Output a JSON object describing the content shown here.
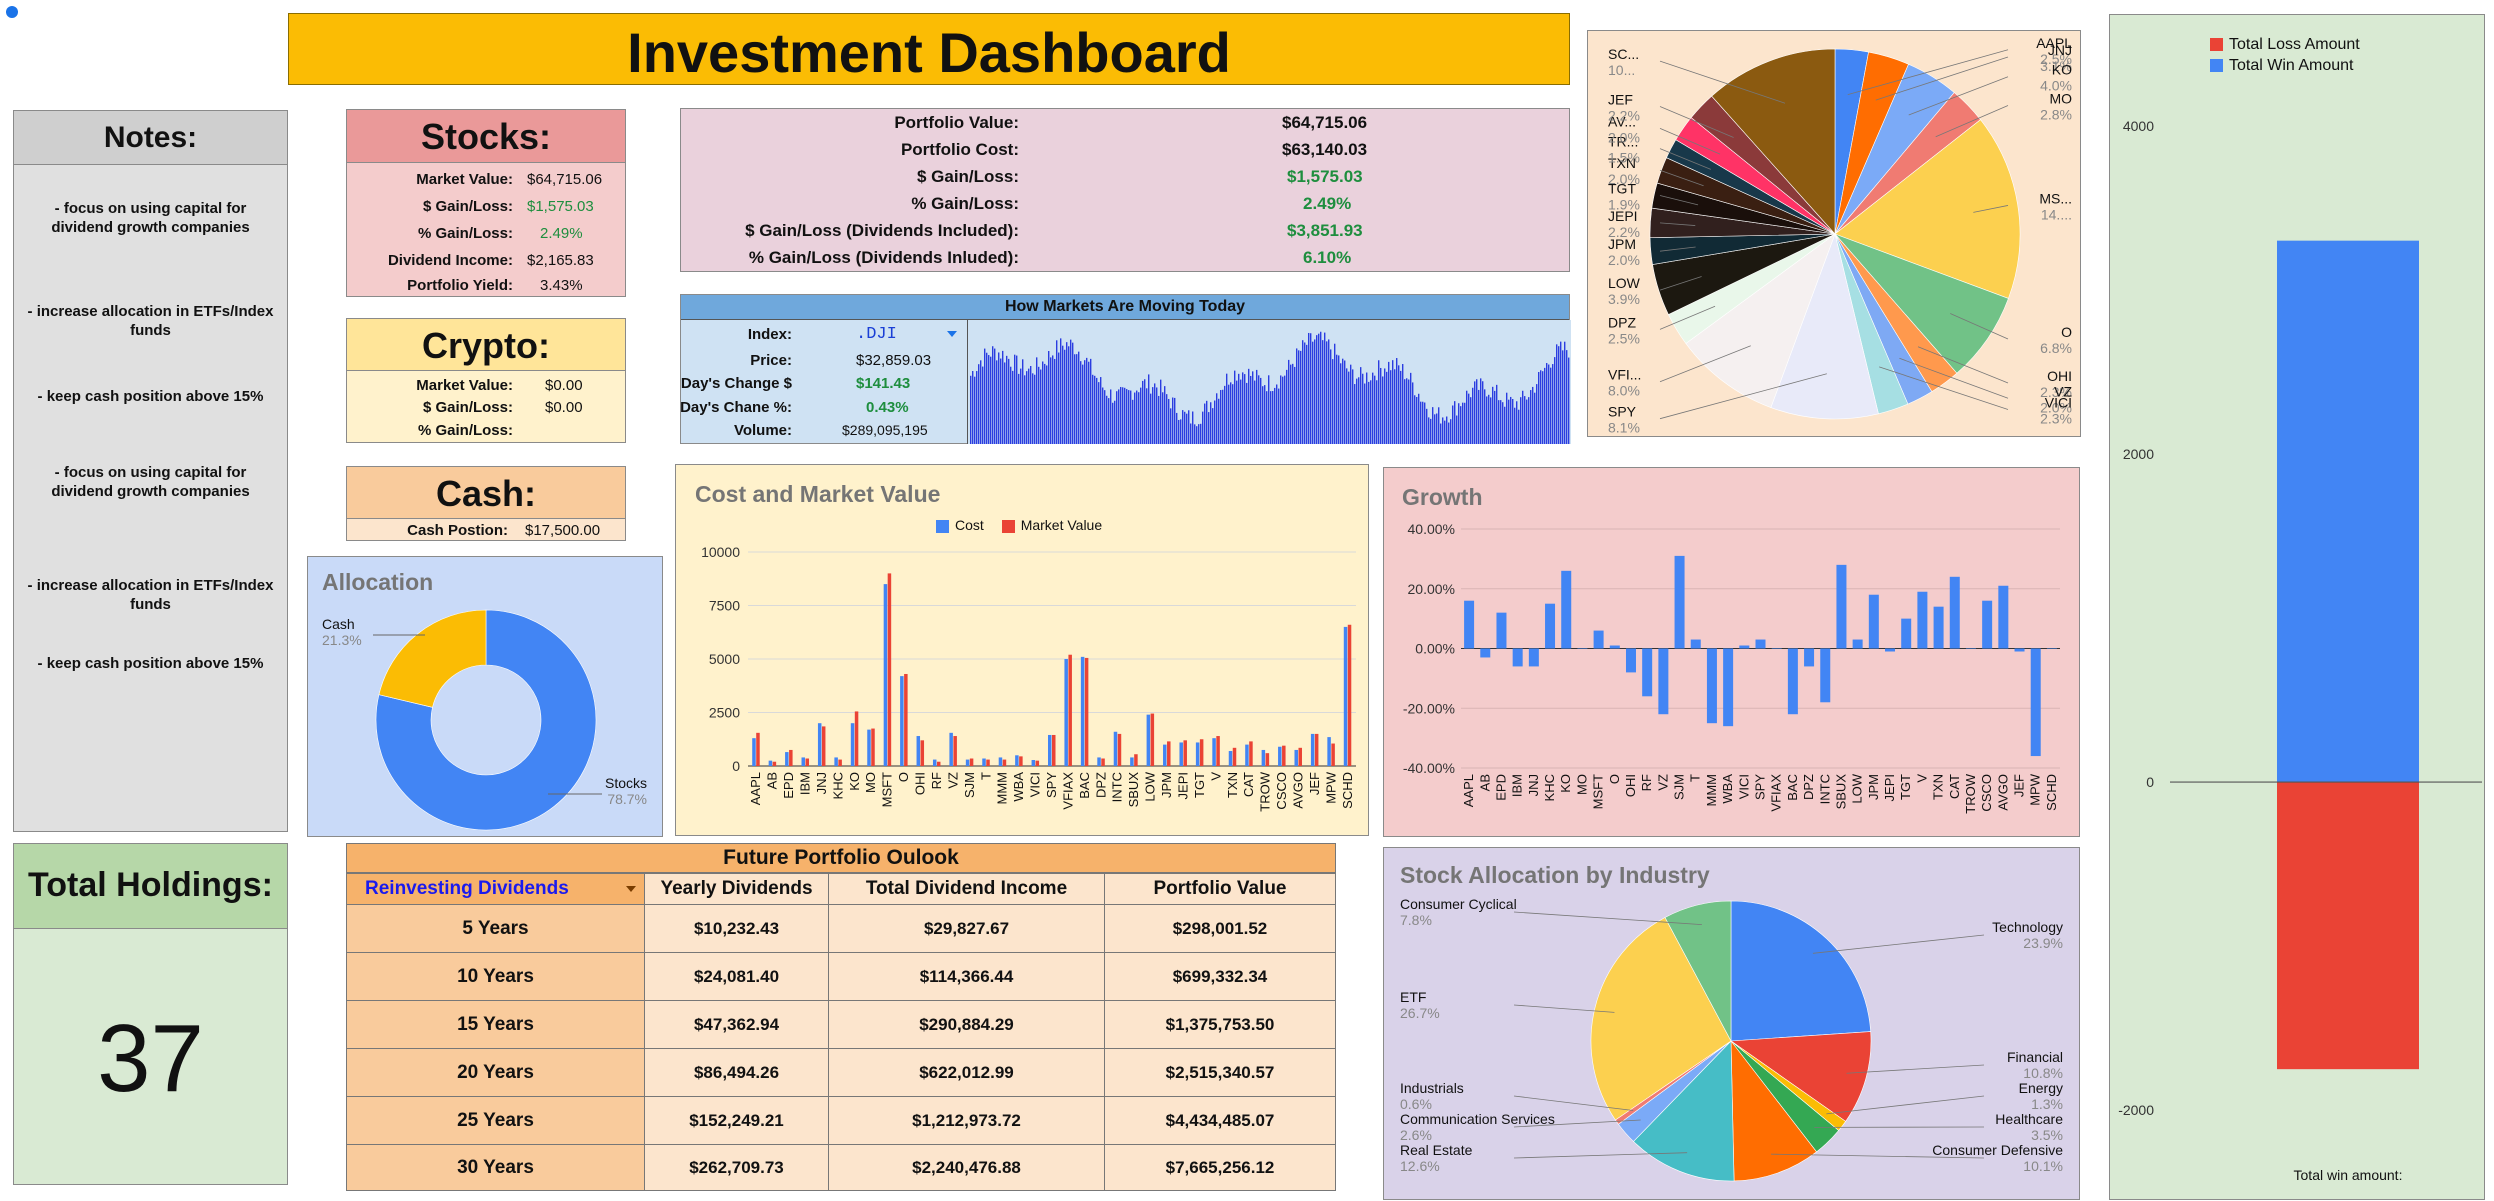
{
  "title": "Investment Dashboard",
  "notes": {
    "heading": "Notes:",
    "items": [
      "- focus on using capital for dividend growth companies",
      "- increase allocation in ETFs/Index funds",
      "- keep cash position above 15%",
      "- focus on using capital for dividend growth companies",
      "- increase allocation in ETFs/Index funds",
      "- keep cash position above 15%"
    ]
  },
  "total_holdings": {
    "heading": "Total Holdings:",
    "value": "37"
  },
  "stocks": {
    "heading": "Stocks:",
    "rows": [
      {
        "label": "Market Value:",
        "value": "$64,715.06"
      },
      {
        "label": "$ Gain/Loss:",
        "value": "$1,575.03"
      },
      {
        "label": "% Gain/Loss:",
        "value": "2.49%"
      },
      {
        "label": "Dividend Income:",
        "value": "$2,165.83"
      },
      {
        "label": "Portfolio Yield:",
        "value": "3.43%"
      }
    ]
  },
  "crypto": {
    "heading": "Crypto:",
    "rows": [
      {
        "label": "Market Value:",
        "value": "$0.00"
      },
      {
        "label": "$ Gain/Loss:",
        "value": "$0.00"
      },
      {
        "label": "% Gain/Loss:",
        "value": ""
      }
    ]
  },
  "cash": {
    "heading": "Cash:",
    "label": "Cash Postion:",
    "value": "$17,500.00"
  },
  "portfolio": {
    "rows": [
      {
        "label": "Portfolio Value:",
        "value": "$64,715.06"
      },
      {
        "label": "Portfolio Cost:",
        "value": "$63,140.03"
      },
      {
        "label": "$ Gain/Loss:",
        "value": "$1,575.03"
      },
      {
        "label": "% Gain/Loss:",
        "value": "2.49%"
      },
      {
        "label": "$ Gain/Loss (Dividends Included):",
        "value": "$3,851.93"
      },
      {
        "label": "% Gain/Loss (Dividends Inluded):",
        "value": "6.10%"
      }
    ]
  },
  "markets": {
    "heading": "How Markets Are Moving Today",
    "rows": [
      {
        "label": "Index:",
        "value": ".DJI"
      },
      {
        "label": "Price:",
        "value": "$32,859.03"
      },
      {
        "label": "Day's Change $",
        "value": "$141.43"
      },
      {
        "label": "Day's Chane %:",
        "value": "0.43%"
      },
      {
        "label": "Volume:",
        "value": "$289,095,195"
      }
    ]
  },
  "future": {
    "heading": "Future Portfolio Oulook",
    "dropdown": "Reinvesting Dividends",
    "columns": [
      "Yearly Dividends",
      "Total Dividend Income",
      "Portfolio Value"
    ],
    "rows": [
      [
        "5 Years",
        "$10,232.43",
        "$29,827.67",
        "$298,001.52"
      ],
      [
        "10 Years",
        "$24,081.40",
        "$114,366.44",
        "$699,332.34"
      ],
      [
        "15 Years",
        "$47,362.94",
        "$290,884.29",
        "$1,375,753.50"
      ],
      [
        "20 Years",
        "$86,494.26",
        "$622,012.99",
        "$2,515,340.57"
      ],
      [
        "25 Years",
        "$152,249.21",
        "$1,212,973.72",
        "$4,434,485.07"
      ],
      [
        "30 Years",
        "$262,709.73",
        "$2,240,476.88",
        "$7,665,256.12"
      ]
    ]
  },
  "colors": {
    "cost": "#4285f4",
    "market": "#ea4335",
    "yellow": "#fbbc04",
    "title_bg": "#fbbc04"
  },
  "chart_data": [
    {
      "type": "pie",
      "subtype": "donut",
      "title": "Allocation",
      "labels": [
        "Stocks",
        "Cash"
      ],
      "values": [
        78.7,
        21.3
      ],
      "label_text": [
        "78.7%",
        "21.3%"
      ],
      "colors": [
        "#4285f4",
        "#fbbc04"
      ]
    },
    {
      "type": "bar",
      "title": "Cost and Market Value",
      "categories": [
        "AAPL",
        "AB",
        "EPD",
        "IBM",
        "JNJ",
        "KHC",
        "KO",
        "MO",
        "MSFT",
        "O",
        "OHI",
        "RF",
        "VZ",
        "SJM",
        "T",
        "MMM",
        "WBA",
        "VICI",
        "SPY",
        "VFIAX",
        "BAC",
        "DPZ",
        "INTC",
        "SBUX",
        "LOW",
        "JPM",
        "JEPI",
        "TGT",
        "V",
        "TXN",
        "CAT",
        "TROW",
        "CSCO",
        "AVGO",
        "JEF",
        "MPW",
        "SCHD"
      ],
      "series": [
        {
          "name": "Cost",
          "values": [
            1300,
            250,
            650,
            400,
            2000,
            400,
            2000,
            1700,
            8500,
            4200,
            1400,
            300,
            1550,
            300,
            350,
            400,
            500,
            280,
            1450,
            5000,
            5100,
            400,
            1600,
            400,
            2400,
            1000,
            1100,
            1100,
            1300,
            700,
            1000,
            750,
            900,
            750,
            1500,
            1350,
            6500
          ]
        },
        {
          "name": "Market Value",
          "values": [
            1550,
            200,
            750,
            350,
            1850,
            300,
            2550,
            1750,
            9000,
            4300,
            1200,
            200,
            1400,
            350,
            300,
            300,
            450,
            250,
            1450,
            5200,
            5050,
            350,
            1500,
            550,
            2450,
            1150,
            1200,
            1250,
            1400,
            850,
            1150,
            600,
            950,
            850,
            1500,
            1050,
            6600
          ]
        }
      ],
      "ylim": [
        0,
        10000
      ],
      "yticks": [
        "10000",
        "7500",
        "5000",
        "2500",
        "0"
      ],
      "legend": "top"
    },
    {
      "type": "bar",
      "title": "Growth",
      "categories": [
        "AAPL",
        "AB",
        "EPD",
        "IBM",
        "JNJ",
        "KHC",
        "KO",
        "MO",
        "MSFT",
        "O",
        "OHI",
        "RF",
        "VZ",
        "SJM",
        "T",
        "MMM",
        "WBA",
        "VICI",
        "SPY",
        "VFIAX",
        "BAC",
        "DPZ",
        "INTC",
        "SBUX",
        "LOW",
        "JPM",
        "JEPI",
        "TGT",
        "V",
        "TXN",
        "CAT",
        "TROW",
        "CSCO",
        "AVGO",
        "JEF",
        "MPW",
        "SCHD"
      ],
      "values": [
        16,
        -3,
        12,
        -6,
        -6,
        15,
        26,
        0,
        6,
        1,
        -8,
        -16,
        -22,
        31,
        3,
        -25,
        -26,
        1,
        3,
        0,
        -22,
        -6,
        -18,
        28,
        3,
        18,
        -1,
        10,
        19,
        14,
        24,
        0,
        16,
        21,
        -1,
        -36,
        0
      ],
      "ylim": [
        -40,
        40
      ],
      "yticks": [
        "40.00%",
        "20.00%",
        "0.00%",
        "-20.00%",
        "-40.00%"
      ],
      "color": "#4285f4"
    },
    {
      "type": "pie",
      "title": "",
      "labels": [
        "AAPL",
        "JNJ",
        "KO",
        "MO",
        "MS...",
        "O",
        "OHI",
        "VZ",
        "VICI",
        "SPY",
        "VFI...",
        "DPZ",
        "LOW",
        "JPM",
        "JEPI",
        "TGT",
        "TXN",
        "TR...",
        "AV...",
        "JEF",
        "SC..."
      ],
      "label_text": [
        "2.5%",
        "3.1%",
        "4.0%",
        "2.8%",
        "14....",
        "6.8%",
        "2.3%",
        "2.0%",
        "2.3%",
        "8.1%",
        "8.0%",
        "2.5%",
        "3.9%",
        "2.0%",
        "2.2%",
        "1.9%",
        "2.0%",
        "1.5%",
        "2.0%",
        "2.2%",
        "10..."
      ],
      "values": [
        2.5,
        3.1,
        4.0,
        2.8,
        14.0,
        6.8,
        2.3,
        2.0,
        2.3,
        8.1,
        8.0,
        2.5,
        3.9,
        2.0,
        2.2,
        1.9,
        2.0,
        1.5,
        2.0,
        2.2,
        10.0
      ],
      "colors": [
        "#4285f4",
        "#ff6d01",
        "#7baaf7",
        "#f07b72",
        "#fcd04f",
        "#71c287",
        "#ff994d",
        "#7ea9f4",
        "#a6dfe3",
        "#e8eaf9",
        "#f5f0f0",
        "#e9f7ea",
        "#1c1810",
        "#112a35",
        "#31201e",
        "#1a0f0b",
        "#3a1f12",
        "#18384a",
        "#ff3366",
        "#8b3a3a",
        "#8b5a10"
      ]
    },
    {
      "type": "bar",
      "title": "",
      "categories": [
        "Total win amount:"
      ],
      "series": [
        {
          "name": "Total Loss Amount",
          "values": [
            -1750
          ]
        },
        {
          "name": "Total Win Amount",
          "values": [
            3300
          ]
        }
      ],
      "ylim": [
        -2200,
        4200
      ],
      "yticks": [
        "4000",
        "2000",
        "0",
        "-2000"
      ],
      "legend": "top"
    },
    {
      "type": "pie",
      "title": "Stock Allocation by Industry",
      "labels": [
        "Technology",
        "Financial",
        "Energy",
        "Healthcare",
        "Consumer Defensive",
        "Real Estate",
        "Communication Services",
        "Industrials",
        "ETF",
        "Consumer Cyclical"
      ],
      "values": [
        23.9,
        10.8,
        1.3,
        3.5,
        10.1,
        12.6,
        2.6,
        0.6,
        26.7,
        7.8
      ],
      "label_text": [
        "23.9%",
        "10.8%",
        "1.3%",
        "3.5%",
        "10.1%",
        "12.6%",
        "2.6%",
        "0.6%",
        "26.7%",
        "7.8%"
      ],
      "colors": [
        "#4285f4",
        "#ea4335",
        "#fbbc04",
        "#34a853",
        "#ff6d01",
        "#46bdc6",
        "#7baaf7",
        "#f07b72",
        "#fcd04f",
        "#71c287"
      ]
    }
  ]
}
